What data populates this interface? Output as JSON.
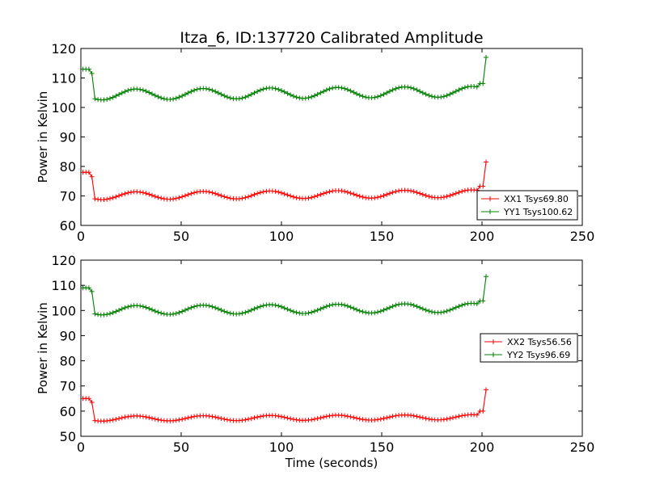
{
  "title": "Itza_6, ID:137720 Calibrated Amplitude",
  "colors": {
    "XX": "#ff0000",
    "YY": "#008000"
  },
  "chart_data": [
    {
      "type": "line",
      "xlabel": "",
      "ylabel": "Power in Kelvin",
      "xlim": [
        0,
        250
      ],
      "ylim": [
        60,
        120
      ],
      "xticks": [
        0,
        50,
        100,
        150,
        200,
        250
      ],
      "yticks": [
        60,
        70,
        80,
        90,
        100,
        110,
        120
      ],
      "legend_position": "lower-right",
      "series": [
        {
          "name": "XX1 Tsys69.80",
          "color": "#ff0000",
          "baseline": 70.0,
          "amplitude": 1.3,
          "period": 33.5,
          "start_level": 78.0,
          "end_level": 81.5
        },
        {
          "name": "YY1 Tsys100.62",
          "color": "#008000",
          "baseline": 104.3,
          "amplitude": 1.8,
          "period": 33.5,
          "start_level": 113.0,
          "end_level": 117.0
        }
      ]
    },
    {
      "type": "line",
      "xlabel": "Time (seconds)",
      "ylabel": "Power in Kelvin",
      "xlim": [
        0,
        250
      ],
      "ylim": [
        50,
        120
      ],
      "xticks": [
        0,
        50,
        100,
        150,
        200,
        250
      ],
      "yticks": [
        50,
        60,
        70,
        80,
        90,
        100,
        110,
        120
      ],
      "legend_position": "center-right",
      "series": [
        {
          "name": "XX2 Tsys56.56",
          "color": "#ff0000",
          "baseline": 57.0,
          "amplitude": 1.0,
          "period": 33.5,
          "start_level": 65.0,
          "end_level": 68.5
        },
        {
          "name": "YY2 Tsys96.69",
          "color": "#008000",
          "baseline": 100.0,
          "amplitude": 1.8,
          "period": 33.5,
          "start_level": 109.0,
          "end_level": 113.5
        }
      ]
    }
  ]
}
